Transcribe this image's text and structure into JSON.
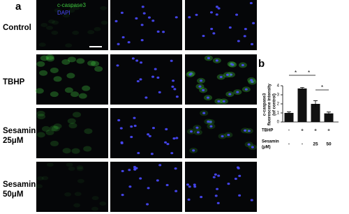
{
  "panels": [
    "a",
    "b"
  ],
  "channels": [
    {
      "name": "c-caspase3",
      "color": "#3ec43e"
    },
    {
      "name": "DAPI",
      "color": "#4a4aff"
    }
  ],
  "rows": [
    [
      "Control"
    ],
    [
      "TBHP"
    ],
    [
      "Sesamin",
      "25μM"
    ],
    [
      "Sesamin",
      "50μM"
    ]
  ],
  "chart_data": {
    "type": "bar",
    "y_label": [
      "c-caspase3",
      "fluorescene intensity",
      "(of control)"
    ],
    "values": [
      1.0,
      3.7,
      2.0,
      0.95
    ],
    "errors": [
      0.12,
      0.12,
      0.35,
      0.15
    ],
    "color": "#111111",
    "ylim": [
      0,
      4
    ],
    "yticks": [
      0,
      1,
      2,
      3,
      4
    ],
    "annotations": [
      "*",
      "*",
      "*"
    ],
    "conditions": [
      {
        "label": [
          "TBHP"
        ],
        "levels": [
          "-",
          "+",
          "+",
          "+"
        ]
      },
      {
        "label": [
          "Sesamin",
          "(μM)"
        ],
        "levels": [
          "-",
          "-",
          "25",
          "50"
        ]
      }
    ]
  }
}
